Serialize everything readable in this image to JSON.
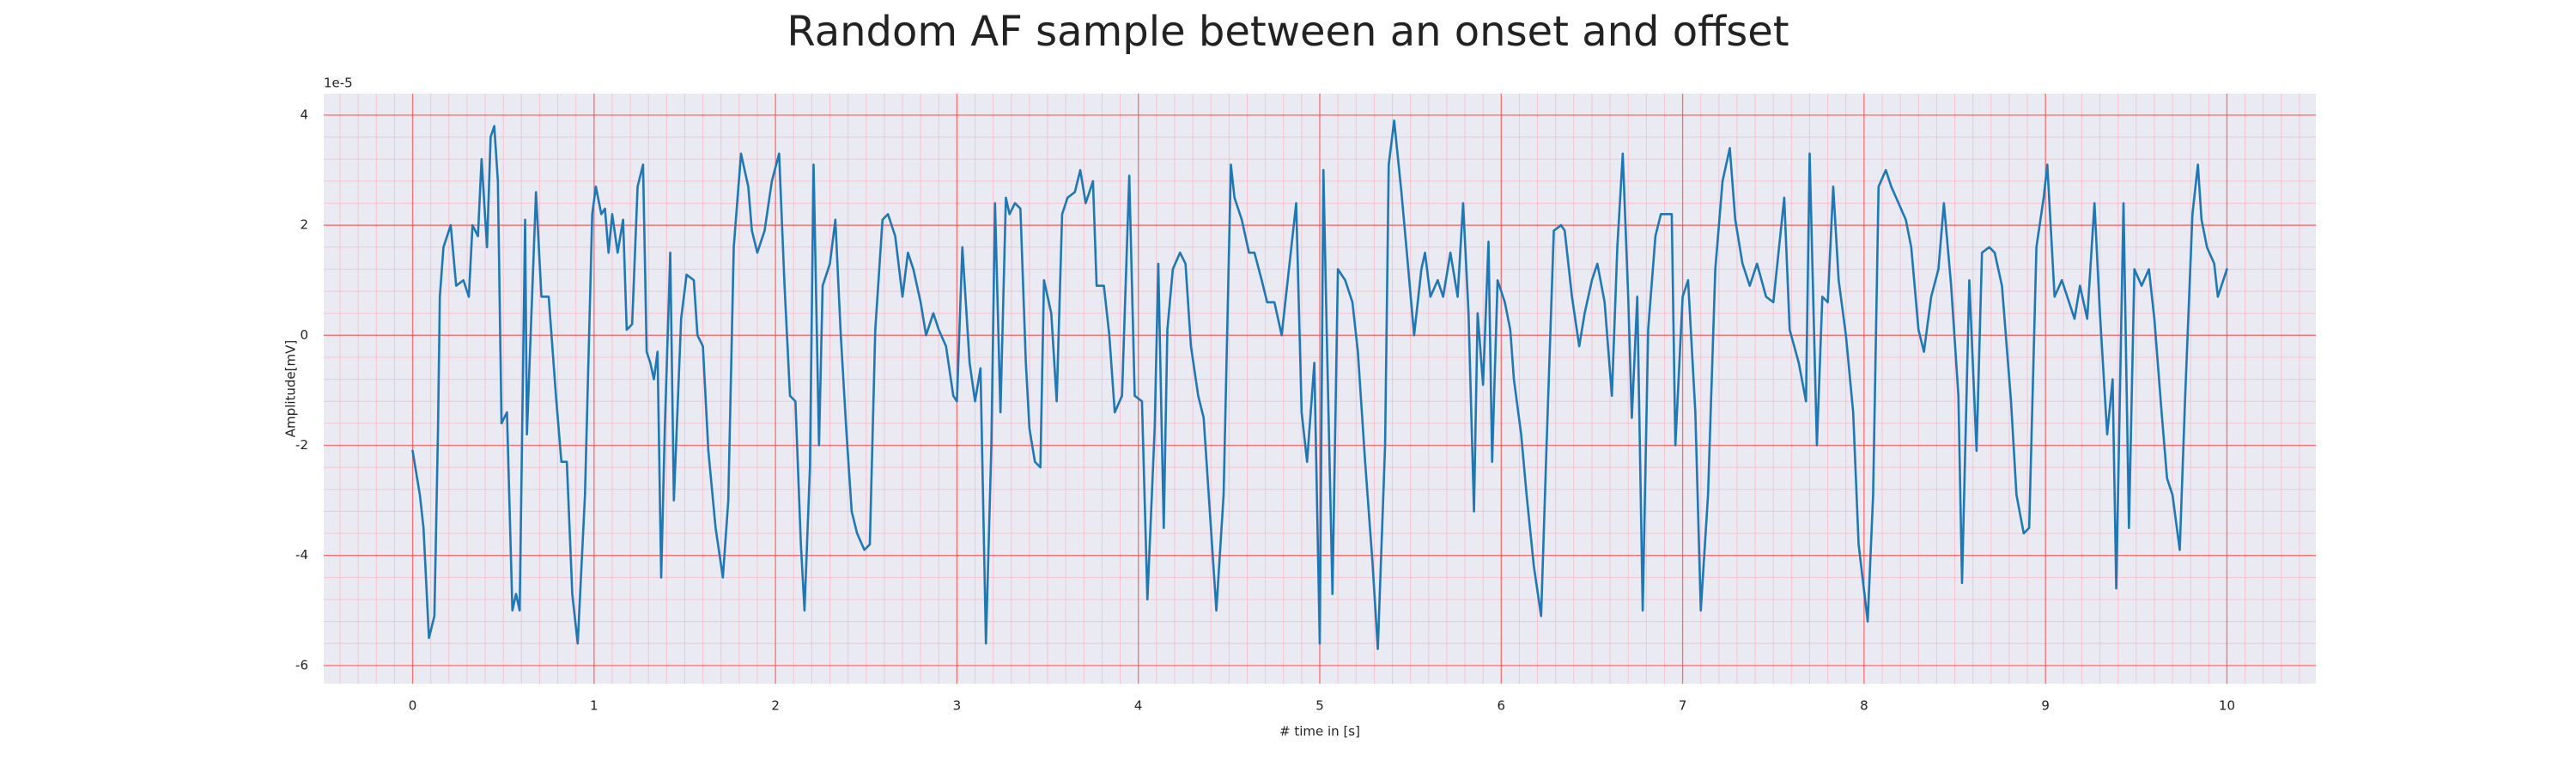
{
  "chart_data": {
    "type": "line",
    "title": "Random AF sample between an onset and offset",
    "xlabel": "# time in [s]",
    "ylabel": "Amplitude[mV]",
    "y_offset_label": "1e-5",
    "color": "#1f77b4",
    "grid": true,
    "minor_grid": true,
    "xlim": [
      -0.49,
      10.49
    ],
    "ylim": [
      -6.33,
      4.39
    ],
    "xticks": [
      0,
      1,
      2,
      3,
      4,
      5,
      6,
      7,
      8,
      9,
      10
    ],
    "yticks": [
      -6,
      -4,
      -2,
      0,
      2,
      4
    ],
    "x": [
      0.0,
      0.04,
      0.06,
      0.09,
      0.12,
      0.14,
      0.15,
      0.17,
      0.21,
      0.24,
      0.28,
      0.31,
      0.33,
      0.36,
      0.38,
      0.41,
      0.43,
      0.45,
      0.47,
      0.49,
      0.52,
      0.55,
      0.57,
      0.59,
      0.62,
      0.63,
      0.68,
      0.71,
      0.75,
      0.79,
      0.82,
      0.85,
      0.88,
      0.91,
      0.95,
      0.99,
      1.01,
      1.04,
      1.06,
      1.08,
      1.1,
      1.13,
      1.16,
      1.18,
      1.21,
      1.24,
      1.27,
      1.29,
      1.31,
      1.33,
      1.35,
      1.37,
      1.39,
      1.42,
      1.44,
      1.48,
      1.51,
      1.55,
      1.57,
      1.6,
      1.63,
      1.67,
      1.71,
      1.74,
      1.77,
      1.81,
      1.85,
      1.87,
      1.9,
      1.94,
      1.98,
      2.02,
      2.05,
      2.08,
      2.11,
      2.14,
      2.16,
      2.19,
      2.21,
      2.24,
      2.26,
      2.3,
      2.33,
      2.36,
      2.39,
      2.42,
      2.45,
      2.49,
      2.52,
      2.55,
      2.59,
      2.62,
      2.66,
      2.7,
      2.73,
      2.76,
      2.8,
      2.83,
      2.87,
      2.9,
      2.94,
      2.98,
      3.0,
      3.03,
      3.07,
      3.1,
      3.13,
      3.16,
      3.19,
      3.21,
      3.24,
      3.27,
      3.29,
      3.32,
      3.35,
      3.38,
      3.4,
      3.43,
      3.46,
      3.48,
      3.52,
      3.55,
      3.58,
      3.61,
      3.65,
      3.68,
      3.71,
      3.75,
      3.77,
      3.81,
      3.84,
      3.87,
      3.91,
      3.95,
      3.98,
      4.02,
      4.05,
      4.09,
      4.11,
      4.14,
      4.16,
      4.19,
      4.23,
      4.26,
      4.29,
      4.33,
      4.36,
      4.4,
      4.43,
      4.47,
      4.51,
      4.53,
      4.57,
      4.61,
      4.64,
      4.68,
      4.71,
      4.75,
      4.79,
      4.82,
      4.87,
      4.9,
      4.93,
      4.97,
      5.0,
      5.02,
      5.04,
      5.07,
      5.1,
      5.14,
      5.18,
      5.21,
      5.25,
      5.29,
      5.32,
      5.36,
      5.38,
      5.41,
      5.45,
      5.48,
      5.52,
      5.56,
      5.58,
      5.61,
      5.65,
      5.68,
      5.72,
      5.76,
      5.79,
      5.82,
      5.85,
      5.87,
      5.9,
      5.93,
      5.95,
      5.98,
      6.02,
      6.05,
      6.07,
      6.11,
      6.14,
      6.18,
      6.22,
      6.25,
      6.29,
      6.33,
      6.35,
      6.39,
      6.43,
      6.46,
      6.5,
      6.53,
      6.57,
      6.61,
      6.64,
      6.67,
      6.7,
      6.72,
      6.75,
      6.78,
      6.81,
      6.85,
      6.88,
      6.9,
      6.94,
      6.96,
      7.0,
      7.03,
      7.07,
      7.1,
      7.14,
      7.18,
      7.22,
      7.26,
      7.29,
      7.33,
      7.37,
      7.41,
      7.46,
      7.5,
      7.56,
      7.59,
      7.64,
      7.68,
      7.7,
      7.74,
      7.77,
      7.8,
      7.83,
      7.86,
      7.9,
      7.94,
      7.97,
      8.02,
      8.05,
      8.08,
      8.12,
      8.15,
      8.19,
      8.23,
      8.26,
      8.3,
      8.33,
      8.37,
      8.41,
      8.44,
      8.48,
      8.52,
      8.54,
      8.58,
      8.62,
      8.65,
      8.69,
      8.72,
      8.76,
      8.81,
      8.84,
      8.88,
      8.91,
      8.95,
      8.99,
      9.01,
      9.05,
      9.09,
      9.12,
      9.16,
      9.19,
      9.23,
      9.27,
      9.3,
      9.34,
      9.37,
      9.39,
      9.43,
      9.46,
      9.49,
      9.53,
      9.57,
      9.6,
      9.64,
      9.67,
      9.7,
      9.74,
      9.77,
      9.81,
      9.84,
      9.86,
      9.89,
      9.93,
      9.95,
      9.98,
      10.0
    ],
    "values": [
      -2.1,
      -2.9,
      -3.5,
      -5.5,
      -5.1,
      -1.7,
      0.7,
      1.6,
      2.0,
      0.9,
      1.0,
      0.7,
      2.0,
      1.8,
      3.2,
      1.6,
      3.6,
      3.8,
      2.8,
      -1.6,
      -1.4,
      -5.0,
      -4.7,
      -5.0,
      2.1,
      -1.8,
      2.6,
      0.7,
      0.7,
      -1.1,
      -2.3,
      -2.3,
      -4.7,
      -5.6,
      -2.9,
      2.2,
      2.7,
      2.2,
      2.3,
      1.5,
      2.2,
      1.5,
      2.1,
      0.1,
      0.2,
      2.7,
      3.1,
      -0.3,
      -0.5,
      -0.8,
      -0.3,
      -4.4,
      -1.7,
      1.5,
      -3.0,
      0.3,
      1.1,
      1.0,
      0.0,
      -0.2,
      -2.1,
      -3.5,
      -4.4,
      -3.0,
      1.6,
      3.3,
      2.7,
      1.9,
      1.5,
      1.9,
      2.8,
      3.3,
      0.9,
      -1.1,
      -1.2,
      -3.8,
      -5.0,
      -2.4,
      3.1,
      -2.0,
      0.9,
      1.3,
      2.1,
      0.0,
      -1.7,
      -3.2,
      -3.6,
      -3.9,
      -3.8,
      0.1,
      2.1,
      2.2,
      1.8,
      0.7,
      1.5,
      1.2,
      0.6,
      0.0,
      0.4,
      0.1,
      -0.2,
      -1.1,
      -1.2,
      1.6,
      -0.5,
      -1.2,
      -0.6,
      -5.6,
      -2.0,
      2.4,
      -1.4,
      2.5,
      2.2,
      2.4,
      2.3,
      -0.5,
      -1.7,
      -2.3,
      -2.4,
      1.0,
      0.4,
      -1.2,
      2.2,
      2.5,
      2.6,
      3.0,
      2.4,
      2.8,
      0.9,
      0.9,
      0.0,
      -1.4,
      -1.1,
      2.9,
      -1.1,
      -1.2,
      -4.8,
      -1.7,
      1.3,
      -3.5,
      0.1,
      1.2,
      1.5,
      1.3,
      -0.2,
      -1.1,
      -1.5,
      -3.5,
      -5.0,
      -2.9,
      3.1,
      2.5,
      2.1,
      1.5,
      1.5,
      1.0,
      0.6,
      0.6,
      0.0,
      0.9,
      2.4,
      -1.4,
      -2.3,
      -0.5,
      -5.6,
      3.0,
      -0.2,
      -4.7,
      1.2,
      1.0,
      0.6,
      -0.3,
      -2.3,
      -4.1,
      -5.7,
      -2.0,
      3.1,
      3.9,
      2.6,
      1.5,
      0.0,
      1.2,
      1.5,
      0.7,
      1.0,
      0.7,
      1.5,
      0.7,
      2.4,
      0.4,
      -3.2,
      0.4,
      -0.9,
      1.7,
      -2.3,
      1.0,
      0.6,
      0.1,
      -0.8,
      -1.8,
      -2.9,
      -4.2,
      -5.1,
      -2.0,
      1.9,
      2.0,
      1.9,
      0.7,
      -0.2,
      0.4,
      1.0,
      1.3,
      0.6,
      -1.1,
      1.6,
      3.3,
      0.7,
      -1.5,
      0.7,
      -5.0,
      0.1,
      1.8,
      2.2,
      2.2,
      2.2,
      -2.0,
      0.7,
      1.0,
      -1.4,
      -5.0,
      -2.9,
      1.2,
      2.8,
      3.4,
      2.1,
      1.3,
      0.9,
      1.3,
      0.7,
      0.6,
      2.5,
      0.1,
      -0.5,
      -1.2,
      3.3,
      -2.0,
      0.7,
      0.6,
      2.7,
      1.0,
      0.0,
      -1.4,
      -3.8,
      -5.2,
      -2.9,
      2.7,
      3.0,
      2.7,
      2.4,
      2.1,
      1.6,
      0.1,
      -0.3,
      0.7,
      1.2,
      2.4,
      0.9,
      -1.1,
      -4.5,
      1.0,
      -2.1,
      1.5,
      1.6,
      1.5,
      0.9,
      -1.2,
      -2.9,
      -3.6,
      -3.5,
      1.6,
      2.5,
      3.1,
      0.7,
      1.0,
      0.7,
      0.3,
      0.9,
      0.3,
      2.4,
      0.4,
      -1.8,
      -0.8,
      -4.6,
      2.4,
      -3.5,
      1.2,
      0.9,
      1.2,
      0.3,
      -1.4,
      -2.6,
      -2.9,
      -3.9,
      -1.1,
      2.2,
      3.1,
      2.1,
      1.6,
      1.3,
      0.7,
      1.0,
      1.2
    ]
  }
}
